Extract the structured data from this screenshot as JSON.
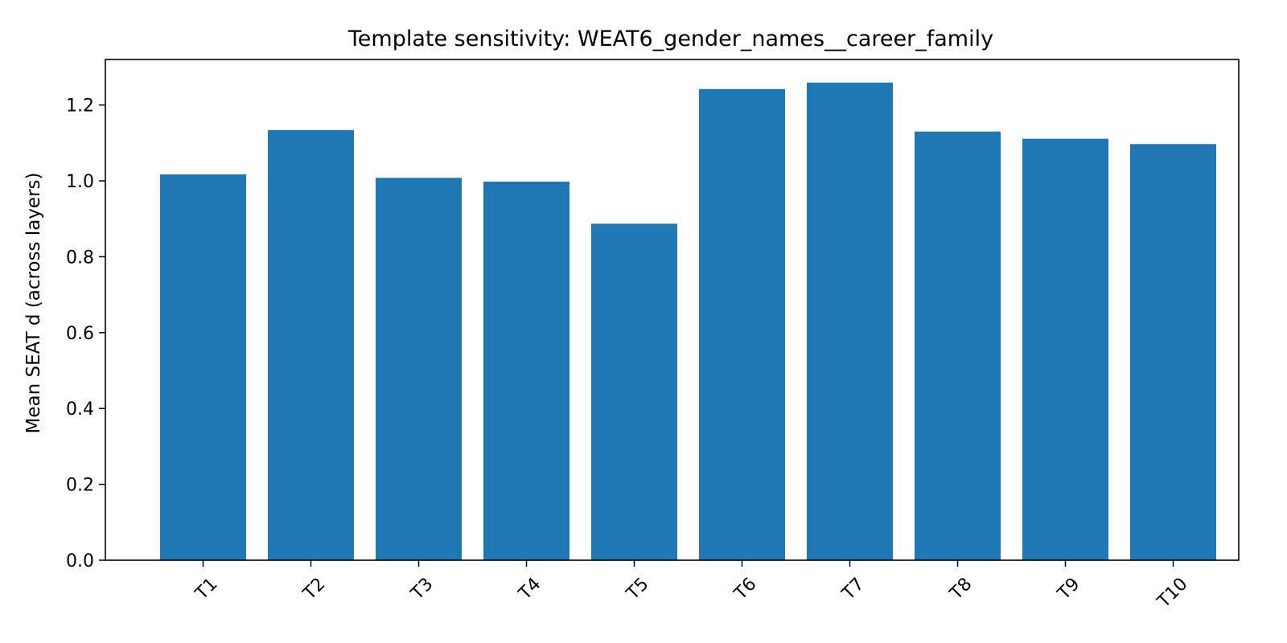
{
  "chart_data": {
    "type": "bar",
    "title": "Template sensitivity: WEAT6_gender_names__career_family",
    "xlabel": "",
    "ylabel": "Mean SEAT d (across layers)",
    "categories": [
      "T1",
      "T2",
      "T3",
      "T4",
      "T5",
      "T6",
      "T7",
      "T8",
      "T9",
      "T10"
    ],
    "values": [
      1.017,
      1.134,
      1.008,
      0.998,
      0.887,
      1.242,
      1.259,
      1.13,
      1.111,
      1.097
    ],
    "ylim": [
      0,
      1.32
    ],
    "yticks": [
      0.0,
      0.2,
      0.4,
      0.6,
      0.8,
      1.0,
      1.2
    ],
    "ytick_labels": [
      "0.0",
      "0.2",
      "0.4",
      "0.6",
      "0.8",
      "1.0",
      "1.2"
    ],
    "bar_color": "#1f77b4",
    "grid": false,
    "legend": false
  }
}
